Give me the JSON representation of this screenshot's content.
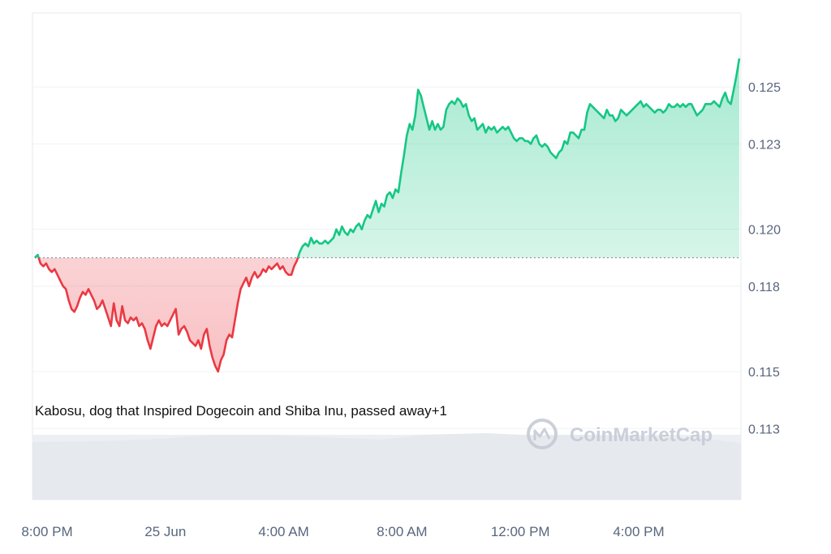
{
  "chart_data": {
    "type": "line",
    "x_labels": [
      "8:00 PM",
      "25 Jun",
      "4:00 AM",
      "8:00 AM",
      "12:00 PM",
      "4:00 PM"
    ],
    "y_ticks": [
      "0.125",
      "0.123",
      "0.120",
      "0.118",
      "0.115",
      "0.113"
    ],
    "ylim": [
      0.1105,
      0.1276
    ],
    "baseline": 0.119,
    "annotation": "Kabosu, dog that Inspired Dogecoin and Shiba Inu, passed away+1",
    "watermark": "CoinMarketCap",
    "colors": {
      "up": "#16c784",
      "down": "#ea3943",
      "grid": "#eff2f5",
      "volume": "#e8ebf0"
    },
    "series": [
      {
        "values": [
          0.119,
          0.1191,
          0.1188,
          0.1187,
          0.1188,
          0.1186,
          0.1185,
          0.1186,
          0.1184,
          0.1182,
          0.118,
          0.1179,
          0.1175,
          0.1172,
          0.1171,
          0.1173,
          0.1176,
          0.1178,
          0.1177,
          0.1179,
          0.1177,
          0.1175,
          0.1172,
          0.1173,
          0.1175,
          0.1172,
          0.1169,
          0.1166,
          0.1174,
          0.1168,
          0.1166,
          0.1173,
          0.1168,
          0.1167,
          0.1169,
          0.1168,
          0.1169,
          0.1166,
          0.1167,
          0.1165,
          0.1161,
          0.1158,
          0.1162,
          0.1166,
          0.1168,
          0.1166,
          0.1167,
          0.1166,
          0.1168,
          0.117,
          0.1172,
          0.1163,
          0.1165,
          0.1166,
          0.1164,
          0.1161,
          0.116,
          0.1159,
          0.1161,
          0.1158,
          0.1163,
          0.1165,
          0.1159,
          0.1155,
          0.1152,
          0.115,
          0.1154,
          0.1156,
          0.1161,
          0.1163,
          0.1162,
          0.1168,
          0.1174,
          0.1179,
          0.1181,
          0.1183,
          0.118,
          0.1183,
          0.1185,
          0.1183,
          0.1184,
          0.1186,
          0.1185,
          0.1187,
          0.1186,
          0.1187,
          0.1188,
          0.1186,
          0.1187,
          0.1185,
          0.1184,
          0.1184,
          0.1187,
          0.1189,
          0.1192,
          0.1194,
          0.1195,
          0.1194,
          0.1197,
          0.1195,
          0.1196,
          0.1195,
          0.1195,
          0.1196,
          0.1195,
          0.1196,
          0.1197,
          0.12,
          0.1198,
          0.1201,
          0.1199,
          0.1198,
          0.12,
          0.1199,
          0.1201,
          0.1202,
          0.12,
          0.1203,
          0.1205,
          0.1204,
          0.1207,
          0.121,
          0.1206,
          0.1209,
          0.1208,
          0.1212,
          0.1213,
          0.1211,
          0.1214,
          0.1213,
          0.122,
          0.1226,
          0.1233,
          0.1237,
          0.1235,
          0.124,
          0.1249,
          0.1247,
          0.1243,
          0.1239,
          0.1235,
          0.1238,
          0.1235,
          0.1237,
          0.1235,
          0.1236,
          0.1242,
          0.1244,
          0.1245,
          0.1244,
          0.1246,
          0.1245,
          0.1243,
          0.1244,
          0.124,
          0.1238,
          0.1239,
          0.1235,
          0.1236,
          0.1237,
          0.1234,
          0.1236,
          0.1235,
          0.1236,
          0.1234,
          0.1235,
          0.1236,
          0.1235,
          0.1236,
          0.1234,
          0.1232,
          0.1231,
          0.1232,
          0.1232,
          0.1231,
          0.1231,
          0.123,
          0.1232,
          0.1233,
          0.123,
          0.1229,
          0.123,
          0.1229,
          0.1227,
          0.1226,
          0.1225,
          0.1227,
          0.1228,
          0.1231,
          0.123,
          0.1234,
          0.1234,
          0.1233,
          0.1232,
          0.1235,
          0.1235,
          0.1241,
          0.1244,
          0.1243,
          0.1242,
          0.1241,
          0.124,
          0.1239,
          0.1242,
          0.124,
          0.124,
          0.1238,
          0.1239,
          0.1242,
          0.1241,
          0.124,
          0.1241,
          0.1242,
          0.1243,
          0.1244,
          0.1245,
          0.1243,
          0.1244,
          0.1243,
          0.1242,
          0.1241,
          0.1242,
          0.1242,
          0.1241,
          0.1242,
          0.1244,
          0.1243,
          0.1243,
          0.1244,
          0.1243,
          0.1244,
          0.1243,
          0.1244,
          0.1244,
          0.1242,
          0.124,
          0.1241,
          0.1242,
          0.1244,
          0.1244,
          0.1244,
          0.1245,
          0.1244,
          0.1243,
          0.1246,
          0.1248,
          0.1245,
          0.1244,
          0.1249,
          0.1254,
          0.126
        ]
      }
    ]
  }
}
